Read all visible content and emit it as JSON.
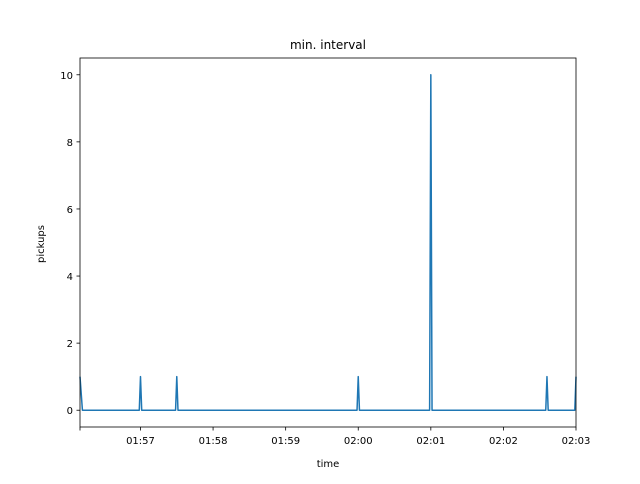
{
  "chart_data": {
    "type": "line",
    "title": "min. interval",
    "xlabel": "time",
    "ylabel": "pickups",
    "x_tick_labels": [
      "01:57",
      "01:58",
      "01:59",
      "02:00",
      "02:01",
      "02:02",
      "02:03"
    ],
    "x_tick_values": [
      "01:57:00",
      "01:58:00",
      "01:59:00",
      "02:00:00",
      "02:01:00",
      "02:02:00",
      "02:03:00"
    ],
    "y_ticks": [
      0,
      2,
      4,
      6,
      8,
      10
    ],
    "xlim": [
      "01:56:10",
      "02:03:00"
    ],
    "ylim": [
      -0.5,
      10.5
    ],
    "grid": false,
    "legend": "none",
    "line_color": "#1f77b4",
    "series": [
      {
        "x": [
          "01:56:10",
          "01:56:12",
          "01:56:59",
          "01:57:00",
          "01:57:01",
          "01:57:29",
          "01:57:30",
          "01:57:31",
          "01:59:59",
          "02:00:00",
          "02:00:01",
          "02:00:59",
          "02:01:00",
          "02:01:01",
          "02:02:35",
          "02:02:36",
          "02:02:37",
          "02:02:59",
          "02:03:00"
        ],
        "values": [
          1,
          0,
          0,
          1,
          0,
          0,
          1,
          0,
          0,
          1,
          0,
          0,
          10,
          0,
          0,
          1,
          0,
          0,
          1
        ]
      }
    ]
  }
}
